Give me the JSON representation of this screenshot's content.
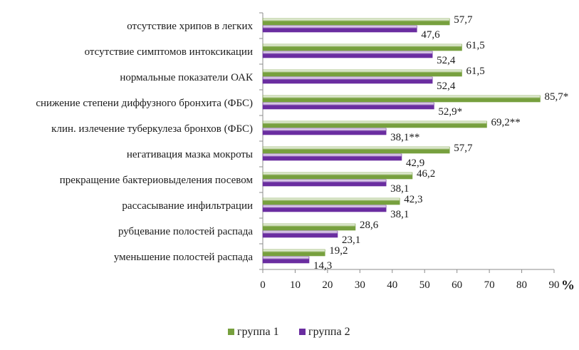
{
  "chart_data": {
    "type": "bar",
    "orientation": "horizontal",
    "categories": [
      "отсутствие хрипов в легких",
      "отсутствие симптомов интоксикации",
      "нормальные показатели ОАК",
      "снижение степени диффузного бронхита (ФБС)",
      "клин. излечение туберкулеза бронхов (ФБС)",
      "негативация мазка мокроты",
      "прекращение бактериовыделения посевом",
      "рассасывание инфильтрации",
      "рубцевание полостей распада",
      "уменьшение полостей распада"
    ],
    "series": [
      {
        "name": "группа 1",
        "color": "#77a03e",
        "values": [
          57.7,
          61.5,
          61.5,
          85.7,
          69.2,
          57.7,
          46.2,
          42.3,
          28.6,
          19.2
        ],
        "labels": [
          "57,7",
          "61,5",
          "61,5",
          "85,7*",
          "69,2**",
          "57,7",
          "46,2",
          "42,3",
          "28,6",
          "19,2"
        ]
      },
      {
        "name": "группа 2",
        "color": "#6a2da0",
        "values": [
          47.6,
          52.4,
          52.4,
          52.9,
          38.1,
          42.9,
          38.1,
          38.1,
          23.1,
          14.3
        ],
        "labels": [
          "47,6",
          "52,4",
          "52,4",
          "52,9*",
          "38,1**",
          "42,9",
          "38,1",
          "38,1",
          "23,1",
          "14,3"
        ]
      }
    ],
    "xlim": [
      0,
      90
    ],
    "xticks": [
      "0",
      "10",
      "20",
      "30",
      "40",
      "50",
      "60",
      "70",
      "80",
      "90"
    ],
    "xunit": "%",
    "legend_position": "bottom-center",
    "grid": false
  }
}
